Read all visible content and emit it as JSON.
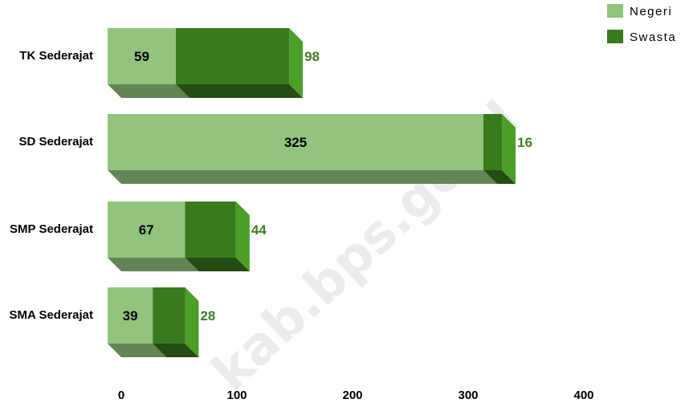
{
  "watermark": "kab.bps.go.id",
  "chart_data": {
    "type": "bar",
    "orientation": "horizontal",
    "stacked": true,
    "style": "3d",
    "categories": [
      "TK Sederajat",
      "SD Sederajat",
      "SMP Sederajat",
      "SMA Sederajat"
    ],
    "series": [
      {
        "name": "Negeri",
        "values": [
          59,
          325,
          67,
          39
        ],
        "color": "#92c47d"
      },
      {
        "name": "Swasta",
        "values": [
          98,
          16,
          44,
          28
        ],
        "color": "#3a7a1f"
      }
    ],
    "x_ticks": [
      "0",
      "100",
      "200",
      "300",
      "400"
    ],
    "xlim": [
      0,
      400
    ],
    "grid": false,
    "legend_position": "top-right",
    "label_colors": {
      "inside": "#000000",
      "outside": "#3f7f22"
    }
  }
}
